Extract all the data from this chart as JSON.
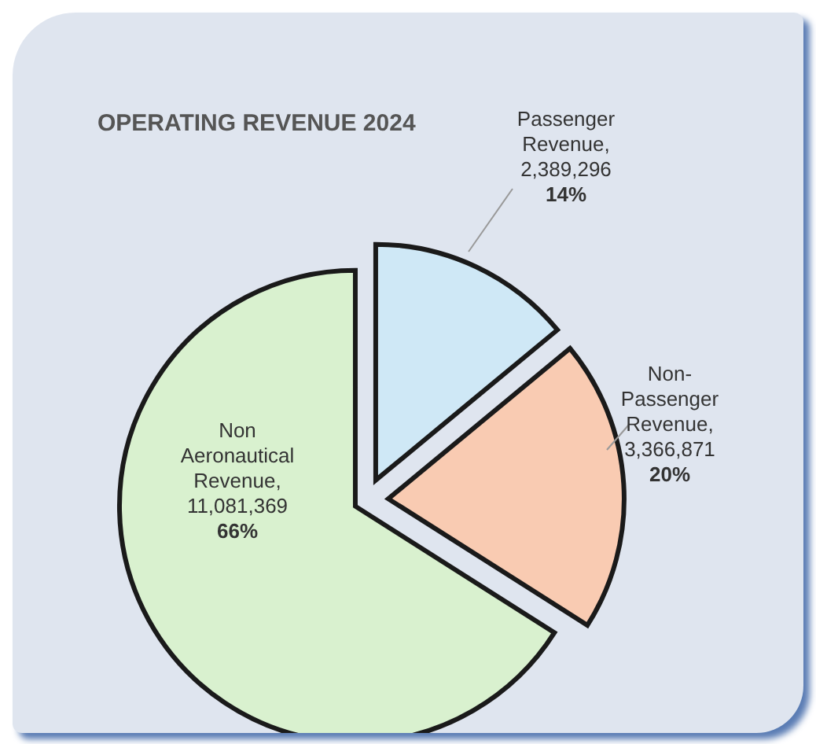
{
  "chart_data": {
    "type": "pie",
    "title": "OPERATING REVENUE 2024",
    "categories": [
      "Passenger Revenue",
      "Non-Passenger Revenue",
      "Non Aeronautical Revenue"
    ],
    "values": [
      14,
      20,
      66
    ],
    "colors": [
      "#cfe8f6",
      "#f9cbb2",
      "#d9f1cf"
    ],
    "value_labels": [
      ", 2,389,296 14%",
      ", 3,366,871 20%",
      ", 11,081,369 66%"
    ]
  }
}
